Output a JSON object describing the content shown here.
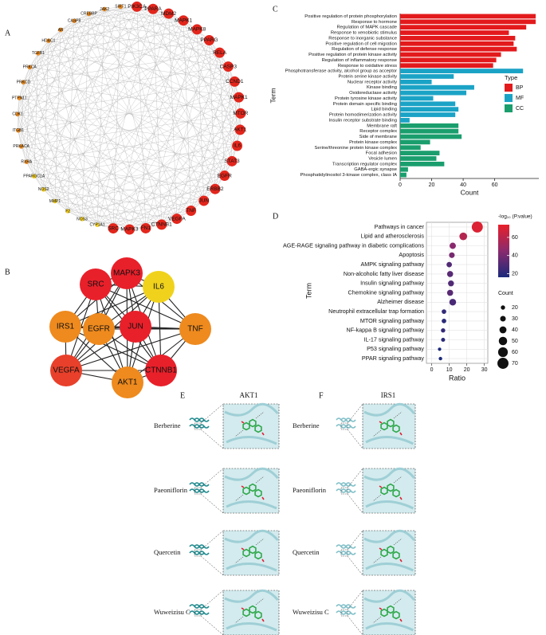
{
  "panel_labels": [
    "A",
    "B",
    "C",
    "D"
  ],
  "network_a": {
    "nodes": [
      {
        "label": "PIK3CA",
        "color": "#e3261c"
      },
      {
        "label": "PPARA",
        "color": "#e3261c"
      },
      {
        "label": "MDM2",
        "color": "#e3261c"
      },
      {
        "label": "MAPK1",
        "color": "#e3261c"
      },
      {
        "label": "MAPK8",
        "color": "#e3261c"
      },
      {
        "label": "PPARG",
        "color": "#e3261c"
      },
      {
        "label": "RELA",
        "color": "#e3261c"
      },
      {
        "label": "CASP3",
        "color": "#e3261c"
      },
      {
        "label": "CCND1",
        "color": "#e3261c"
      },
      {
        "label": "MAPK1",
        "color": "#e3261c"
      },
      {
        "label": "MTOR",
        "color": "#e3261c"
      },
      {
        "label": "AKT1",
        "color": "#e3261c"
      },
      {
        "label": "IL6",
        "color": "#e3261c"
      },
      {
        "label": "STAT3",
        "color": "#e3261c"
      },
      {
        "label": "EGFR",
        "color": "#e3261c"
      },
      {
        "label": "ERBB2",
        "color": "#e3261c"
      },
      {
        "label": "JUN",
        "color": "#e3261c"
      },
      {
        "label": "TNF",
        "color": "#e3261c"
      },
      {
        "label": "VEGFA",
        "color": "#e3261c"
      },
      {
        "label": "CTNNB1",
        "color": "#e3261c"
      },
      {
        "label": "FN1",
        "color": "#e3261c"
      },
      {
        "label": "MAPK3",
        "color": "#e3261c"
      },
      {
        "label": "SRC",
        "color": "#e3261c"
      },
      {
        "label": "CYP1A1",
        "color": "#f5d020"
      },
      {
        "label": "NOS3",
        "color": "#f5d020"
      },
      {
        "label": "F2",
        "color": "#f5d020"
      },
      {
        "label": "MMP1",
        "color": "#f5d020"
      },
      {
        "label": "NOS2",
        "color": "#f5d020"
      },
      {
        "label": "PPARGC1A",
        "color": "#f5d020"
      },
      {
        "label": "RXRA",
        "color": "#ef8d1f"
      },
      {
        "label": "PRKACA",
        "color": "#ef8d1f"
      },
      {
        "label": "ITGB1",
        "color": "#ef8d1f"
      },
      {
        "label": "CDK1",
        "color": "#ef8d1f"
      },
      {
        "label": "PTPN11",
        "color": "#ef8d1f"
      },
      {
        "label": "PRKCD",
        "color": "#ef8d1f"
      },
      {
        "label": "PRKCA",
        "color": "#ef8d1f"
      },
      {
        "label": "TGFB1",
        "color": "#ef8d1f"
      },
      {
        "label": "HDAC1",
        "color": "#ef8d1f"
      },
      {
        "label": "AR",
        "color": "#ef8d1f"
      },
      {
        "label": "CASP8",
        "color": "#ef8d1f"
      },
      {
        "label": "CREBBP",
        "color": "#ef8d1f"
      },
      {
        "label": "JAK2",
        "color": "#ef8d1f"
      },
      {
        "label": "SIRT1",
        "color": "#ef8d1f"
      }
    ]
  },
  "network_b": {
    "nodes": [
      {
        "label": "SRC",
        "color": "#e8202a"
      },
      {
        "label": "MAPK3",
        "color": "#e8202a"
      },
      {
        "label": "IL6",
        "color": "#f0d21c"
      },
      {
        "label": "IRS1",
        "color": "#ee8a1e"
      },
      {
        "label": "EGFR",
        "color": "#ee8a1e"
      },
      {
        "label": "JUN",
        "color": "#e8202a"
      },
      {
        "label": "TNF",
        "color": "#ee8a1e"
      },
      {
        "label": "VEGFA",
        "color": "#e8402a"
      },
      {
        "label": "AKT1",
        "color": "#ee8a1e"
      },
      {
        "label": "CTNNB1",
        "color": "#e8202a"
      }
    ]
  },
  "chart_data": [
    {
      "type": "bar",
      "orientation": "horizontal",
      "xlabel": "Count",
      "ylabel": "Term",
      "legend_title": "Type",
      "categories": [
        "Positive regulation of protein phosphorylation",
        "Response to hormone",
        "Regulation of MAPK cascade",
        "Response to xenobiotic stimulus",
        "Response to inorganic substance",
        "Positive regulation of cell migration",
        "Regulation of defense response",
        "Positive regulation of protein kinase activity",
        "Regulation of inflammatory response",
        "Response to oxidative stress",
        "Phosphotransferase activity, alcohol group as acceptor",
        "Protein serine kinase activity",
        "Nuclear receptor activity",
        "Kinase binding",
        "Oxidoreductase activity",
        "Protein tyrosine kinase activity",
        "Protein domain specific binding",
        "Lipid binding",
        "Protein homodimerization activity",
        "Insulin receptor substrate binding",
        "Membrane raft",
        "Receptor complex",
        "Side of membrane",
        "Protein kinase complex",
        "Serine/threonine protein kinase complex",
        "Focal adhesion",
        "Vesicle lumen",
        "Transcription regulator complex",
        "GABA-ergic synapse",
        "Phosphatidylinositol 3-kinase complex, class IA"
      ],
      "series": [
        {
          "name": "BP",
          "color": "#e31a1c",
          "values": [
            86,
            86,
            80,
            69,
            73,
            72,
            74,
            64,
            61,
            59,
            null,
            null,
            null,
            null,
            null,
            null,
            null,
            null,
            null,
            null,
            null,
            null,
            null,
            null,
            null,
            null,
            null,
            null,
            null,
            null
          ]
        },
        {
          "name": "MF",
          "color": "#1ba3c6",
          "values": [
            null,
            null,
            null,
            null,
            null,
            null,
            null,
            null,
            null,
            null,
            78,
            34,
            20,
            47,
            42,
            21,
            35,
            37,
            35,
            6,
            null,
            null,
            null,
            null,
            null,
            null,
            null,
            null,
            null,
            null
          ]
        },
        {
          "name": "CC",
          "color": "#1a9e6e",
          "values": [
            null,
            null,
            null,
            null,
            null,
            null,
            null,
            null,
            null,
            null,
            null,
            null,
            null,
            null,
            null,
            null,
            null,
            null,
            null,
            null,
            37,
            37,
            39,
            19,
            13,
            25,
            23,
            28,
            5,
            4
          ]
        }
      ],
      "xlim": [
        0,
        88
      ],
      "xticks": [
        0,
        20,
        40,
        60
      ]
    },
    {
      "type": "scatter",
      "xlabel": "Ratio",
      "ylabel": "Term",
      "categories": [
        "Pathways in cancer",
        "Lipid and atherosclerosis",
        "AGE-RAGE signaling pathway in diabetic complications",
        "Apoptosis",
        "AMPK signaling pathway",
        "Non-alcoholic fatty liver disease",
        "Insulin signaling pathway",
        "Chemokine signaling pathway",
        "Alzheimer disease",
        "Neutrophil extracellular trap formation",
        "MTOR signaling pathway",
        "NF-kappa B signaling pathway",
        "IL-17 signaling pathway",
        "P53 signaling pathway",
        "PPAR signaling pathway"
      ],
      "values": [
        26,
        18,
        12,
        11.5,
        10,
        10.5,
        11,
        10.5,
        12,
        7,
        7,
        6.5,
        6.5,
        4.5,
        5
      ],
      "size_values": [
        70,
        45,
        35,
        30,
        28,
        33,
        32,
        33,
        38,
        22,
        22,
        20,
        18,
        13,
        14
      ],
      "color_values": [
        70,
        58,
        45,
        40,
        30,
        32,
        30,
        32,
        28,
        22,
        20,
        22,
        20,
        16,
        15
      ],
      "xlim": [
        -3,
        32
      ],
      "xticks": [
        0,
        10,
        20,
        30
      ],
      "grid": true,
      "colorbar_title": "-log₁₀ (P.value)",
      "colormap": [
        "#1b2a7b",
        "#8a2a6e",
        "#e8202a"
      ],
      "clim": [
        16,
        74
      ],
      "colorbar_ticks": [
        20,
        40,
        60
      ],
      "size_legend_title": "Count",
      "size_legend_ticks": [
        20,
        30,
        40,
        50,
        60,
        70
      ]
    }
  ],
  "docking": [
    {
      "label": "E",
      "title": "AKT1",
      "compounds": [
        "Berberine",
        "Paeoniflorin",
        "Quercetin",
        "Wuweizisu C"
      ]
    },
    {
      "label": "F",
      "title": "IRS1",
      "compounds": [
        "Berberine",
        "Paeoniflorin",
        "Quercetin",
        "Wuweizisu C"
      ]
    }
  ]
}
